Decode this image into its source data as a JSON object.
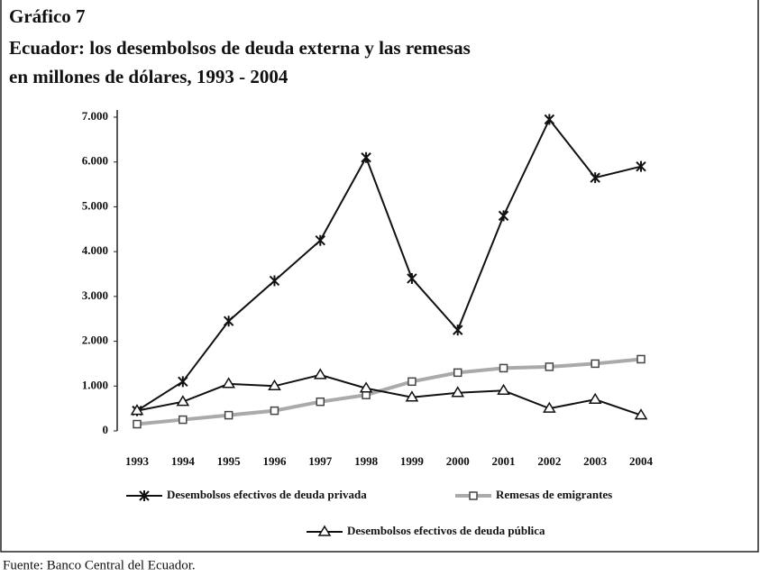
{
  "chart_data": {
    "type": "line",
    "figure_label": "Gráfico 7",
    "title": [
      "Ecuador: los desembolsos de deuda externa y las remesas",
      "en millones de dólares, 1993 - 2004"
    ],
    "source": "Fuente: Banco Central del Ecuador.",
    "categories": [
      "1993",
      "1994",
      "1995",
      "1996",
      "1997",
      "1998",
      "1999",
      "2000",
      "2001",
      "2002",
      "2003",
      "2004"
    ],
    "series": [
      {
        "name": "Desembolsos efectivos de deuda privada",
        "color": "#111111",
        "marker": "x",
        "values": [
          450,
          1100,
          2450,
          3350,
          4250,
          6100,
          3400,
          2250,
          4800,
          6950,
          5650,
          5900
        ]
      },
      {
        "name": "Remesas de emigrantes",
        "color": "#aaaaaa",
        "marker": "s",
        "values": [
          150,
          250,
          350,
          450,
          650,
          800,
          1100,
          1300,
          1400,
          1430,
          1500,
          1600
        ]
      },
      {
        "name": "Desembolsos efectivos de deuda pública",
        "color": "#111111",
        "marker": "^",
        "values": [
          450,
          650,
          1050,
          1000,
          1250,
          950,
          750,
          850,
          900,
          500,
          700,
          350
        ]
      }
    ],
    "ylim": [
      0,
      7000
    ],
    "yticks": [
      {
        "value": 0,
        "label": "0"
      },
      {
        "value": 1000,
        "label": "1.000"
      },
      {
        "value": 2000,
        "label": "2.000"
      },
      {
        "value": 3000,
        "label": "3.000"
      },
      {
        "value": 4000,
        "label": "4.000"
      },
      {
        "value": 5000,
        "label": "5.000"
      },
      {
        "value": 6000,
        "label": "6.000"
      },
      {
        "value": 7000,
        "label": "7.000"
      }
    ],
    "grid": false
  }
}
